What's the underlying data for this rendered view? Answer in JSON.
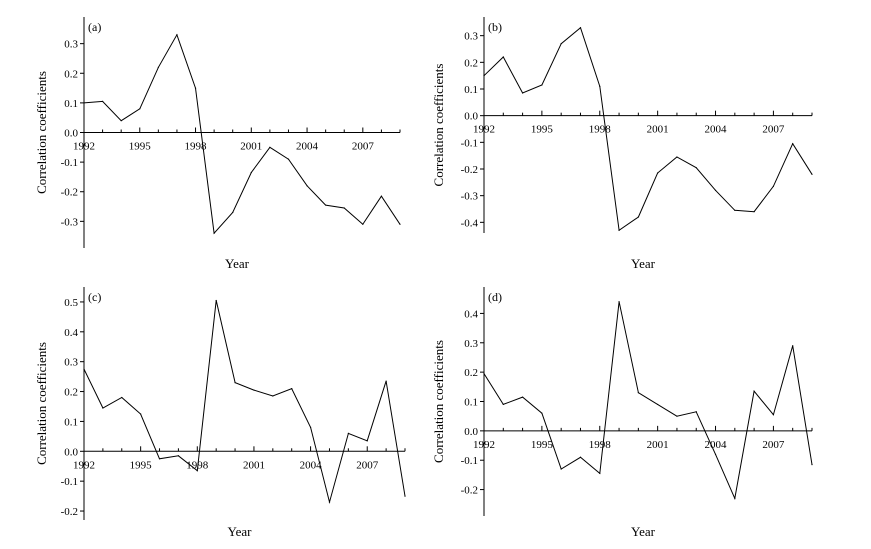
{
  "chart_data": [
    {
      "type": "line",
      "panel_label": "(a)",
      "xlabel": "Year",
      "ylabel": "Correlation  coefficients",
      "x": [
        1992,
        1993,
        1994,
        1995,
        1996,
        1997,
        1998,
        1999,
        2000,
        2001,
        2002,
        2003,
        2004,
        2005,
        2006,
        2007,
        2008,
        2009
      ],
      "series": [
        {
          "values": [
            0.1,
            0.105,
            0.04,
            0.08,
            0.22,
            0.33,
            0.15,
            -0.34,
            -0.27,
            -0.135,
            -0.05,
            -0.09,
            -0.18,
            -0.245,
            -0.255,
            -0.31,
            -0.215,
            -0.31
          ]
        }
      ],
      "xticks": [
        1992,
        1995,
        1998,
        2001,
        2004,
        2007
      ],
      "yticks": [
        0.3,
        0.2,
        0.1,
        0.0,
        -0.1,
        -0.2,
        -0.3
      ],
      "ytick_labels": [
        "0.3",
        "0.2",
        "0.1",
        "0.0",
        "-0.1",
        "-0.2",
        "-0.3"
      ],
      "xlim": [
        1992,
        2009
      ],
      "ylim": [
        -0.39,
        0.39
      ],
      "grid": false
    },
    {
      "type": "line",
      "panel_label": "(b)",
      "xlabel": "Year",
      "ylabel": "Correlation  coefficients",
      "x": [
        1992,
        1993,
        1994,
        1995,
        1996,
        1997,
        1998,
        1999,
        2000,
        2001,
        2002,
        2003,
        2004,
        2005,
        2006,
        2007,
        2008,
        2009
      ],
      "series": [
        {
          "values": [
            0.15,
            0.22,
            0.085,
            0.115,
            0.27,
            0.33,
            0.11,
            -0.43,
            -0.38,
            -0.215,
            -0.155,
            -0.195,
            -0.28,
            -0.355,
            -0.36,
            -0.265,
            -0.105,
            -0.22
          ]
        }
      ],
      "xticks": [
        1992,
        1995,
        1998,
        2001,
        2004,
        2007
      ],
      "yticks": [
        0.3,
        0.2,
        0.1,
        0.0,
        -0.1,
        -0.2,
        -0.3,
        -0.4
      ],
      "ytick_labels": [
        "0.3",
        "0.2",
        "0.1",
        "0.0",
        "-0.1",
        "-0.2",
        "-0.3",
        "-0.4"
      ],
      "xlim": [
        1992,
        2009
      ],
      "ylim": [
        -0.44,
        0.37
      ],
      "grid": false
    },
    {
      "type": "line",
      "panel_label": "(c)",
      "xlabel": "Year",
      "ylabel": "Correlation  coefficients",
      "x": [
        1992,
        1993,
        1994,
        1995,
        1996,
        1997,
        1998,
        1999,
        2000,
        2001,
        2002,
        2003,
        2004,
        2005,
        2006,
        2007,
        2008,
        2009
      ],
      "series": [
        {
          "values": [
            0.275,
            0.145,
            0.18,
            0.125,
            -0.025,
            -0.015,
            -0.065,
            0.505,
            0.23,
            0.205,
            0.185,
            0.21,
            0.08,
            -0.17,
            0.06,
            0.035,
            0.235,
            -0.15
          ]
        }
      ],
      "xticks": [
        1992,
        1995,
        1998,
        2001,
        2004,
        2007
      ],
      "yticks": [
        0.5,
        0.4,
        0.3,
        0.2,
        0.1,
        0.0,
        -0.1,
        -0.2
      ],
      "ytick_labels": [
        "0.5",
        "0.4",
        "0.3",
        "0.2",
        "0.1",
        "0.0",
        "-0.1",
        "-0.2"
      ],
      "xlim": [
        1992,
        2009
      ],
      "ylim": [
        -0.23,
        0.55
      ],
      "grid": false
    },
    {
      "type": "line",
      "panel_label": "(d)",
      "xlabel": "Year",
      "ylabel": "Correlation  coefficients",
      "x": [
        1992,
        1993,
        1994,
        1995,
        1996,
        1997,
        1998,
        1999,
        2000,
        2001,
        2002,
        2003,
        2004,
        2005,
        2006,
        2007,
        2008,
        2009
      ],
      "series": [
        {
          "values": [
            0.195,
            0.09,
            0.115,
            0.06,
            -0.13,
            -0.09,
            -0.145,
            0.44,
            0.13,
            0.09,
            0.05,
            0.065,
            -0.08,
            -0.23,
            0.135,
            0.055,
            0.29,
            -0.115
          ]
        }
      ],
      "xticks": [
        1992,
        1995,
        1998,
        2001,
        2004,
        2007
      ],
      "yticks": [
        0.4,
        0.3,
        0.2,
        0.1,
        0.0,
        -0.1,
        -0.2
      ],
      "ytick_labels": [
        "0.4",
        "0.3",
        "0.2",
        "0.1",
        "0.0",
        "-0.1",
        "-0.2"
      ],
      "xlim": [
        1992,
        2009
      ],
      "ylim": [
        -0.29,
        0.49
      ],
      "grid": false
    }
  ]
}
